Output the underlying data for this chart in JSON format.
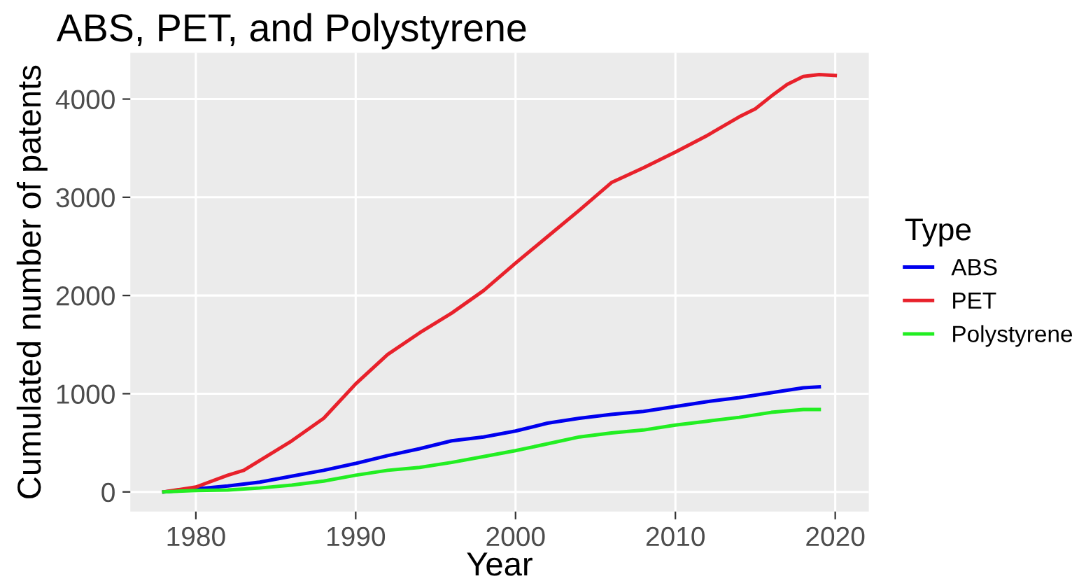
{
  "chart_data": {
    "type": "line",
    "title": "ABS, PET, and Polystyrene",
    "xlabel": "Year",
    "ylabel": "Cumulated number of patents",
    "legend_title": "Type",
    "legend": "right",
    "grid": true,
    "xlim": [
      1975.9,
      2022.1
    ],
    "xticks": [
      1980,
      1990,
      2000,
      2010,
      2020
    ],
    "ylim": [
      -200,
      4470
    ],
    "yticks": [
      0,
      1000,
      2000,
      3000,
      4000
    ],
    "series": [
      {
        "name": "ABS",
        "color": "#0000ee",
        "x": [
          1978,
          1980,
          1982,
          1984,
          1986,
          1988,
          1990,
          1992,
          1994,
          1996,
          1998,
          2000,
          2002,
          2004,
          2006,
          2008,
          2010,
          2012,
          2014,
          2016,
          2018,
          2019
        ],
        "values": [
          0,
          30,
          60,
          100,
          160,
          220,
          290,
          370,
          440,
          520,
          560,
          620,
          700,
          750,
          790,
          820,
          870,
          920,
          960,
          1010,
          1060,
          1070
        ]
      },
      {
        "name": "PET",
        "color": "#e8212b",
        "x": [
          1978,
          1980,
          1982,
          1983,
          1984,
          1986,
          1988,
          1990,
          1992,
          1994,
          1996,
          1998,
          2000,
          2002,
          2004,
          2006,
          2008,
          2010,
          2012,
          2014,
          2015,
          2016,
          2017,
          2018,
          2019,
          2020
        ],
        "values": [
          0,
          50,
          170,
          220,
          320,
          520,
          750,
          1100,
          1400,
          1620,
          1820,
          2050,
          2330,
          2600,
          2870,
          3150,
          3300,
          3460,
          3630,
          3820,
          3900,
          4030,
          4150,
          4230,
          4250,
          4240
        ]
      },
      {
        "name": "Polystyrene",
        "color": "#22ee22",
        "x": [
          1978,
          1980,
          1982,
          1984,
          1986,
          1988,
          1990,
          1992,
          1994,
          1996,
          1998,
          2000,
          2002,
          2004,
          2006,
          2008,
          2010,
          2012,
          2014,
          2016,
          2018,
          2019
        ],
        "values": [
          0,
          15,
          20,
          40,
          70,
          110,
          170,
          220,
          250,
          300,
          360,
          420,
          490,
          560,
          600,
          630,
          680,
          720,
          760,
          810,
          840,
          840
        ]
      }
    ]
  }
}
